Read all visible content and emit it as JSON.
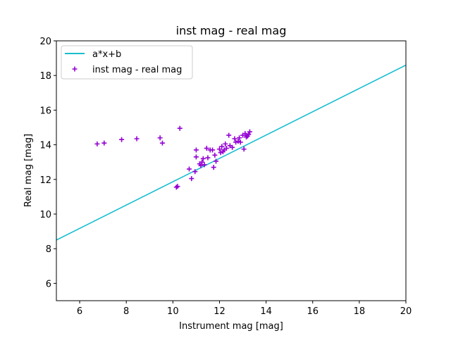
{
  "chart_data": {
    "type": "scatter",
    "title": "inst mag - real mag",
    "xlabel": "Instrument mag [mag]",
    "ylabel": "Real mag [mag]",
    "xlim": [
      5,
      20
    ],
    "ylim": [
      5,
      20
    ],
    "xticks": [
      6,
      8,
      10,
      12,
      14,
      16,
      18,
      20
    ],
    "yticks": [
      6,
      8,
      10,
      12,
      14,
      16,
      18,
      20
    ],
    "grid": false,
    "legend_position": "top-left",
    "colors": {
      "fit_line": "#17becf",
      "points": "#9400d3"
    },
    "series": [
      {
        "name": "a*x+b",
        "kind": "line",
        "x": [
          5,
          20
        ],
        "y": [
          8.5,
          18.6
        ]
      },
      {
        "name": "inst mag - real mag",
        "kind": "scatter",
        "marker": "plus",
        "points": [
          [
            6.75,
            14.05
          ],
          [
            7.05,
            14.1
          ],
          [
            7.8,
            14.3
          ],
          [
            8.45,
            14.35
          ],
          [
            9.45,
            14.4
          ],
          [
            9.55,
            14.1
          ],
          [
            10.3,
            14.95
          ],
          [
            10.15,
            11.55
          ],
          [
            10.2,
            11.6
          ],
          [
            10.7,
            12.6
          ],
          [
            10.8,
            12.05
          ],
          [
            10.95,
            12.45
          ],
          [
            11.0,
            13.3
          ],
          [
            11.0,
            13.7
          ],
          [
            11.15,
            12.9
          ],
          [
            11.2,
            12.8
          ],
          [
            11.25,
            13.0
          ],
          [
            11.3,
            13.2
          ],
          [
            11.35,
            12.85
          ],
          [
            11.45,
            13.8
          ],
          [
            11.5,
            13.25
          ],
          [
            11.6,
            13.7
          ],
          [
            11.7,
            13.7
          ],
          [
            11.75,
            12.7
          ],
          [
            11.8,
            13.4
          ],
          [
            11.85,
            13.05
          ],
          [
            12.0,
            13.75
          ],
          [
            12.05,
            13.55
          ],
          [
            12.1,
            13.9
          ],
          [
            12.15,
            13.6
          ],
          [
            12.2,
            13.7
          ],
          [
            12.25,
            14.05
          ],
          [
            12.3,
            13.8
          ],
          [
            12.4,
            14.55
          ],
          [
            12.45,
            13.95
          ],
          [
            12.55,
            13.85
          ],
          [
            12.65,
            14.35
          ],
          [
            12.7,
            14.15
          ],
          [
            12.8,
            14.2
          ],
          [
            12.85,
            14.4
          ],
          [
            12.9,
            14.15
          ],
          [
            13.0,
            14.55
          ],
          [
            13.05,
            13.75
          ],
          [
            13.1,
            14.65
          ],
          [
            13.15,
            14.45
          ],
          [
            13.2,
            14.5
          ],
          [
            13.25,
            14.6
          ],
          [
            13.3,
            14.75
          ]
        ]
      }
    ]
  }
}
